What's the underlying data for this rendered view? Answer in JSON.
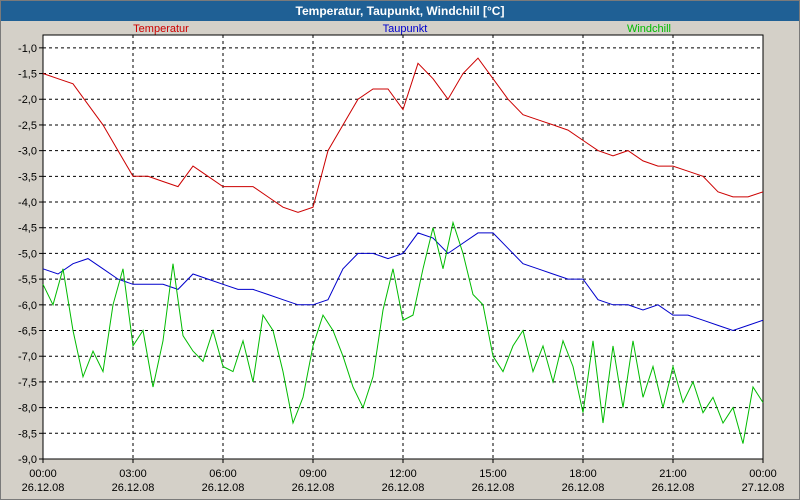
{
  "window": {
    "title": "Temperatur, Taupunkt, Windchill [°C]"
  },
  "colors": {
    "temperatur": "#cc0000",
    "taupunkt": "#0000cc",
    "windchill": "#00bb00",
    "grid": "#000000",
    "plot_bg": "#ffffff"
  },
  "chart_data": {
    "type": "line",
    "title": "Temperatur, Taupunkt, Windchill [°C]",
    "xlabel": "",
    "ylabel": "",
    "ylim": [
      -9.0,
      -0.75
    ],
    "xlim": [
      "2008-12-26 00:00",
      "2008-12-27 00:00"
    ],
    "grid": true,
    "legend_position": "top",
    "x_ticks": [
      {
        "time": "00:00",
        "date": "26.12.08"
      },
      {
        "time": "03:00",
        "date": "26.12.08"
      },
      {
        "time": "06:00",
        "date": "26.12.08"
      },
      {
        "time": "09:00",
        "date": "26.12.08"
      },
      {
        "time": "12:00",
        "date": "26.12.08"
      },
      {
        "time": "15:00",
        "date": "26.12.08"
      },
      {
        "time": "18:00",
        "date": "26.12.08"
      },
      {
        "time": "21:00",
        "date": "26.12.08"
      },
      {
        "time": "00:00",
        "date": "27.12.08"
      }
    ],
    "y_ticks": [
      "-1,0",
      "-1,5",
      "-2,0",
      "-2,5",
      "-3,0",
      "-3,5",
      "-4,0",
      "-4,5",
      "-5,0",
      "-5,5",
      "-6,0",
      "-6,5",
      "-7,0",
      "-7,5",
      "-8,0",
      "-8,5",
      "-9,0"
    ],
    "y_tick_values": [
      -1.0,
      -1.5,
      -2.0,
      -2.5,
      -3.0,
      -3.5,
      -4.0,
      -4.5,
      -5.0,
      -5.5,
      -6.0,
      -6.5,
      -7.0,
      -7.5,
      -8.0,
      -8.5,
      -9.0
    ],
    "series": [
      {
        "name": "Temperatur",
        "x": [
          "2008-12-26 00:00",
          "2008-12-26 00:30",
          "2008-12-26 01:00",
          "2008-12-26 01:30",
          "2008-12-26 02:00",
          "2008-12-26 02:30",
          "2008-12-26 03:00",
          "2008-12-26 03:30",
          "2008-12-26 04:00",
          "2008-12-26 04:30",
          "2008-12-26 05:00",
          "2008-12-26 05:30",
          "2008-12-26 06:00",
          "2008-12-26 06:30",
          "2008-12-26 07:00",
          "2008-12-26 07:30",
          "2008-12-26 08:00",
          "2008-12-26 08:30",
          "2008-12-26 09:00",
          "2008-12-26 09:30",
          "2008-12-26 10:00",
          "2008-12-26 10:30",
          "2008-12-26 11:00",
          "2008-12-26 11:30",
          "2008-12-26 12:00",
          "2008-12-26 12:30",
          "2008-12-26 13:00",
          "2008-12-26 13:30",
          "2008-12-26 14:00",
          "2008-12-26 14:30",
          "2008-12-26 15:00",
          "2008-12-26 15:30",
          "2008-12-26 16:00",
          "2008-12-26 16:30",
          "2008-12-26 17:00",
          "2008-12-26 17:30",
          "2008-12-26 18:00",
          "2008-12-26 18:30",
          "2008-12-26 19:00",
          "2008-12-26 19:30",
          "2008-12-26 20:00",
          "2008-12-26 20:30",
          "2008-12-26 21:00",
          "2008-12-26 21:30",
          "2008-12-26 22:00",
          "2008-12-26 22:30",
          "2008-12-26 23:00",
          "2008-12-26 23:30",
          "2008-12-27 00:00"
        ],
        "values": [
          -1.5,
          -1.6,
          -1.7,
          -2.1,
          -2.5,
          -3.0,
          -3.5,
          -3.5,
          -3.6,
          -3.7,
          -3.3,
          -3.5,
          -3.7,
          -3.7,
          -3.7,
          -3.9,
          -4.1,
          -4.2,
          -4.1,
          -3.0,
          -2.5,
          -2.0,
          -1.8,
          -1.8,
          -2.2,
          -1.3,
          -1.6,
          -2.0,
          -1.5,
          -1.2,
          -1.6,
          -2.0,
          -2.3,
          -2.4,
          -2.5,
          -2.6,
          -2.8,
          -3.0,
          -3.1,
          -3.0,
          -3.2,
          -3.3,
          -3.3,
          -3.4,
          -3.5,
          -3.8,
          -3.9,
          -3.9,
          -3.8
        ]
      },
      {
        "name": "Taupunkt",
        "x": [
          "2008-12-26 00:00",
          "2008-12-26 00:30",
          "2008-12-26 01:00",
          "2008-12-26 01:30",
          "2008-12-26 02:00",
          "2008-12-26 02:30",
          "2008-12-26 03:00",
          "2008-12-26 03:30",
          "2008-12-26 04:00",
          "2008-12-26 04:30",
          "2008-12-26 05:00",
          "2008-12-26 05:30",
          "2008-12-26 06:00",
          "2008-12-26 06:30",
          "2008-12-26 07:00",
          "2008-12-26 07:30",
          "2008-12-26 08:00",
          "2008-12-26 08:30",
          "2008-12-26 09:00",
          "2008-12-26 09:30",
          "2008-12-26 10:00",
          "2008-12-26 10:30",
          "2008-12-26 11:00",
          "2008-12-26 11:30",
          "2008-12-26 12:00",
          "2008-12-26 12:30",
          "2008-12-26 13:00",
          "2008-12-26 13:30",
          "2008-12-26 14:00",
          "2008-12-26 14:30",
          "2008-12-26 15:00",
          "2008-12-26 15:30",
          "2008-12-26 16:00",
          "2008-12-26 16:30",
          "2008-12-26 17:00",
          "2008-12-26 17:30",
          "2008-12-26 18:00",
          "2008-12-26 18:30",
          "2008-12-26 19:00",
          "2008-12-26 19:30",
          "2008-12-26 20:00",
          "2008-12-26 20:30",
          "2008-12-26 21:00",
          "2008-12-26 21:30",
          "2008-12-26 22:00",
          "2008-12-26 22:30",
          "2008-12-26 23:00",
          "2008-12-26 23:30",
          "2008-12-27 00:00"
        ],
        "values": [
          -5.3,
          -5.4,
          -5.2,
          -5.1,
          -5.3,
          -5.5,
          -5.6,
          -5.6,
          -5.6,
          -5.7,
          -5.4,
          -5.5,
          -5.6,
          -5.7,
          -5.7,
          -5.8,
          -5.9,
          -6.0,
          -6.0,
          -5.9,
          -5.3,
          -5.0,
          -5.0,
          -5.1,
          -5.0,
          -4.6,
          -4.7,
          -5.0,
          -4.8,
          -4.6,
          -4.6,
          -4.9,
          -5.2,
          -5.3,
          -5.4,
          -5.5,
          -5.5,
          -5.9,
          -6.0,
          -6.0,
          -6.1,
          -6.0,
          -6.2,
          -6.2,
          -6.3,
          -6.4,
          -6.5,
          -6.4,
          -6.3
        ]
      },
      {
        "name": "Windchill",
        "x": [
          "2008-12-26 00:00",
          "2008-12-26 00:20",
          "2008-12-26 00:40",
          "2008-12-26 01:00",
          "2008-12-26 01:20",
          "2008-12-26 01:40",
          "2008-12-26 02:00",
          "2008-12-26 02:20",
          "2008-12-26 02:40",
          "2008-12-26 03:00",
          "2008-12-26 03:20",
          "2008-12-26 03:40",
          "2008-12-26 04:00",
          "2008-12-26 04:20",
          "2008-12-26 04:40",
          "2008-12-26 05:00",
          "2008-12-26 05:20",
          "2008-12-26 05:40",
          "2008-12-26 06:00",
          "2008-12-26 06:20",
          "2008-12-26 06:40",
          "2008-12-26 07:00",
          "2008-12-26 07:20",
          "2008-12-26 07:40",
          "2008-12-26 08:00",
          "2008-12-26 08:20",
          "2008-12-26 08:40",
          "2008-12-26 09:00",
          "2008-12-26 09:20",
          "2008-12-26 09:40",
          "2008-12-26 10:00",
          "2008-12-26 10:20",
          "2008-12-26 10:40",
          "2008-12-26 11:00",
          "2008-12-26 11:20",
          "2008-12-26 11:40",
          "2008-12-26 12:00",
          "2008-12-26 12:20",
          "2008-12-26 12:40",
          "2008-12-26 13:00",
          "2008-12-26 13:20",
          "2008-12-26 13:40",
          "2008-12-26 14:00",
          "2008-12-26 14:20",
          "2008-12-26 14:40",
          "2008-12-26 15:00",
          "2008-12-26 15:20",
          "2008-12-26 15:40",
          "2008-12-26 16:00",
          "2008-12-26 16:20",
          "2008-12-26 16:40",
          "2008-12-26 17:00",
          "2008-12-26 17:20",
          "2008-12-26 17:40",
          "2008-12-26 18:00",
          "2008-12-26 18:20",
          "2008-12-26 18:40",
          "2008-12-26 19:00",
          "2008-12-26 19:20",
          "2008-12-26 19:40",
          "2008-12-26 20:00",
          "2008-12-26 20:20",
          "2008-12-26 20:40",
          "2008-12-26 21:00",
          "2008-12-26 21:20",
          "2008-12-26 21:40",
          "2008-12-26 22:00",
          "2008-12-26 22:20",
          "2008-12-26 22:40",
          "2008-12-26 23:00",
          "2008-12-26 23:20",
          "2008-12-26 23:40",
          "2008-12-27 00:00"
        ],
        "values": [
          -5.6,
          -6.0,
          -5.3,
          -6.5,
          -7.4,
          -6.9,
          -7.3,
          -6.0,
          -5.3,
          -6.8,
          -6.5,
          -7.6,
          -6.7,
          -5.2,
          -6.6,
          -6.9,
          -7.1,
          -6.5,
          -7.2,
          -7.3,
          -6.7,
          -7.5,
          -6.2,
          -6.5,
          -7.3,
          -8.3,
          -7.8,
          -6.8,
          -6.2,
          -6.5,
          -7.0,
          -7.6,
          -8.0,
          -7.4,
          -6.1,
          -5.3,
          -6.3,
          -6.2,
          -5.3,
          -4.5,
          -5.3,
          -4.4,
          -5.0,
          -5.8,
          -6.0,
          -7.0,
          -7.3,
          -6.8,
          -6.5,
          -7.3,
          -6.8,
          -7.5,
          -6.7,
          -7.2,
          -8.1,
          -6.7,
          -8.3,
          -6.8,
          -8.0,
          -6.7,
          -7.8,
          -7.2,
          -8.0,
          -7.2,
          -7.9,
          -7.5,
          -8.1,
          -7.8,
          -8.3,
          -8.0,
          -8.7,
          -7.6,
          -7.9
        ]
      }
    ]
  }
}
